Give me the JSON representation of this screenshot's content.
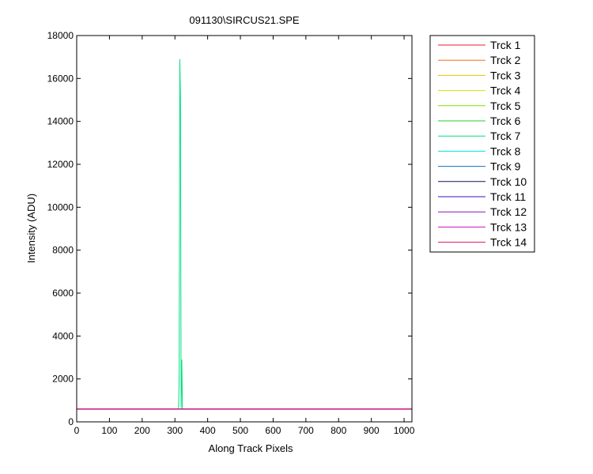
{
  "chart_data": {
    "type": "line",
    "title": "091130\\SIRCUS21.SPE",
    "x_label": "Along Track Pixels",
    "y_label": "Intensity (ADU)",
    "x": [
      0,
      311,
      313,
      315,
      317,
      319,
      321,
      323,
      1024
    ],
    "series": [
      {
        "name": "Trck 1",
        "color": "#e8202e",
        "values": [
          600,
          600,
          600,
          600,
          600,
          600,
          600,
          600,
          600
        ]
      },
      {
        "name": "Trck 2",
        "color": "#f07020",
        "values": [
          600,
          600,
          600,
          600,
          600,
          600,
          600,
          600,
          600
        ]
      },
      {
        "name": "Trck 3",
        "color": "#e8c000",
        "values": [
          600,
          600,
          600,
          600,
          600,
          600,
          600,
          600,
          600
        ]
      },
      {
        "name": "Trck 4",
        "color": "#d8e000",
        "values": [
          600,
          600,
          600,
          600,
          600,
          600,
          600,
          600,
          600
        ]
      },
      {
        "name": "Trck 5",
        "color": "#80e000",
        "values": [
          600,
          600,
          600,
          600,
          600,
          600,
          600,
          600,
          600
        ]
      },
      {
        "name": "Trck 6",
        "color": "#20d020",
        "values": [
          600,
          600,
          600,
          600,
          600,
          600,
          600,
          600,
          600
        ]
      },
      {
        "name": "Trck 7",
        "color": "#00e080",
        "values": [
          600,
          600,
          2000,
          16900,
          15100,
          650,
          2900,
          600,
          600
        ]
      },
      {
        "name": "Trck 8",
        "color": "#00e0e0",
        "values": [
          600,
          600,
          600,
          600,
          600,
          600,
          600,
          600,
          600
        ]
      },
      {
        "name": "Trck 9",
        "color": "#1070c0",
        "values": [
          600,
          600,
          600,
          600,
          600,
          600,
          600,
          600,
          600
        ]
      },
      {
        "name": "Trck 10",
        "color": "#101060",
        "values": [
          600,
          600,
          600,
          600,
          600,
          600,
          600,
          600,
          600
        ]
      },
      {
        "name": "Trck 11",
        "color": "#4010c0",
        "values": [
          600,
          600,
          600,
          600,
          600,
          600,
          600,
          600,
          600
        ]
      },
      {
        "name": "Trck 12",
        "color": "#9010c0",
        "values": [
          600,
          600,
          600,
          600,
          600,
          600,
          600,
          600,
          600
        ]
      },
      {
        "name": "Trck 13",
        "color": "#d010c0",
        "values": [
          600,
          600,
          600,
          600,
          600,
          600,
          600,
          600,
          600
        ]
      },
      {
        "name": "Trck 14",
        "color": "#e01060",
        "values": [
          600,
          600,
          600,
          600,
          600,
          600,
          600,
          600,
          600
        ]
      }
    ],
    "xlim": [
      0,
      1024
    ],
    "xticks": [
      0,
      100,
      200,
      300,
      400,
      500,
      600,
      700,
      800,
      900,
      1000
    ],
    "ylim": [
      0,
      18000
    ],
    "yticks": [
      0,
      2000,
      4000,
      6000,
      8000,
      10000,
      12000,
      14000,
      16000,
      18000
    ],
    "legend": "outside-right"
  }
}
